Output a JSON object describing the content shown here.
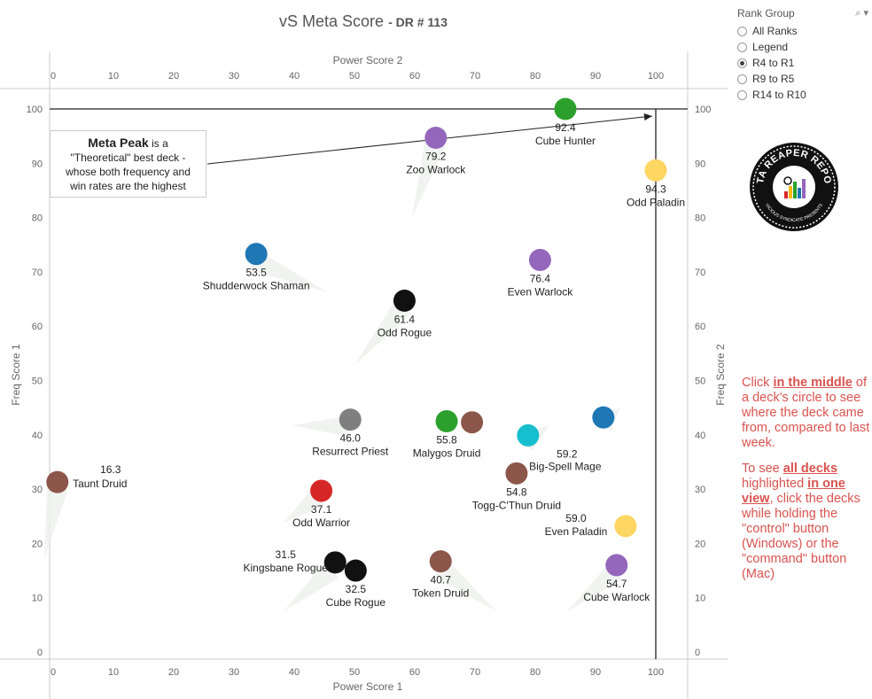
{
  "title": {
    "main": "vS Meta Score",
    "suffix": "- DR # 113"
  },
  "chart_data": {
    "type": "scatter",
    "xlabel": "Power Score 1",
    "x2label": "Power Score 2",
    "ylabel": "Freq Score 1",
    "y2label": "Freq Score 2",
    "xlim": [
      0,
      105
    ],
    "ylim": [
      0,
      105
    ],
    "xticks": [
      0,
      10,
      20,
      30,
      40,
      50,
      60,
      70,
      80,
      90,
      100
    ],
    "yticks": [
      0,
      10,
      20,
      30,
      40,
      50,
      60,
      70,
      80,
      90,
      100
    ],
    "reference_lines": {
      "x": 100,
      "y": 100
    },
    "grid": false,
    "points": [
      {
        "name": "Cube Hunter",
        "score": "92.4",
        "x": 85,
        "y": 100,
        "color": "#2ca02c",
        "label_pos": "below"
      },
      {
        "name": "Zoo Warlock",
        "score": "79.2",
        "x": 63.5,
        "y": 94.7,
        "color": "#9467bd",
        "label_pos": "below"
      },
      {
        "name": "Odd Paladin",
        "score": "94.3",
        "x": 100,
        "y": 88.7,
        "color": "#fdd663",
        "label_pos": "below"
      },
      {
        "name": "Shudderwock Shaman",
        "score": "53.5",
        "x": 33.7,
        "y": 73.3,
        "color": "#1f77b4",
        "label_pos": "below"
      },
      {
        "name": "Even Warlock",
        "score": "76.4",
        "x": 80.8,
        "y": 72.2,
        "color": "#9467bd",
        "label_pos": "below"
      },
      {
        "name": "Odd Rogue",
        "score": "61.4",
        "x": 58.3,
        "y": 64.7,
        "color": "#111111",
        "label_pos": "below"
      },
      {
        "name": "Resurrect Priest",
        "score": "46.0",
        "x": 49.3,
        "y": 42.8,
        "color": "#7f7f7f",
        "label_pos": "below"
      },
      {
        "name": "Malygos Druid",
        "score": "55.8",
        "x": 65.3,
        "y": 42.5,
        "color": "#2ca02c",
        "label_pos": "below"
      },
      {
        "name": "",
        "score": "",
        "x": 69.5,
        "y": 42.3,
        "color": "#8c564b",
        "label_pos": "none"
      },
      {
        "name": "Big-Spell Mage",
        "score": "59.2",
        "x": 78.8,
        "y": 39.9,
        "color": "#17becf",
        "label_pos": "below-right"
      },
      {
        "name": "",
        "score": "",
        "x": 91.3,
        "y": 43.2,
        "color": "#1f77b4",
        "label_pos": "none"
      },
      {
        "name": "Taunt Druid",
        "score": "16.3",
        "x": 0.7,
        "y": 31.3,
        "color": "#8c564b",
        "label_pos": "right"
      },
      {
        "name": "Togg-C'Thun Druid",
        "score": "54.8",
        "x": 76.9,
        "y": 32.9,
        "color": "#8c564b",
        "label_pos": "below"
      },
      {
        "name": "Odd Warrior",
        "score": "37.1",
        "x": 44.5,
        "y": 29.7,
        "color": "#d62728",
        "label_pos": "below"
      },
      {
        "name": "Even Paladin",
        "score": "59.0",
        "x": 95,
        "y": 23.2,
        "color": "#fdd663",
        "label_pos": "left"
      },
      {
        "name": "Kingsbane Rogue",
        "score": "31.5",
        "x": 46.8,
        "y": 16.5,
        "color": "#111111",
        "label_pos": "left"
      },
      {
        "name": "Cube Rogue",
        "score": "32.5",
        "x": 50.2,
        "y": 15,
        "color": "#111111",
        "label_pos": "below"
      },
      {
        "name": "Token Druid",
        "score": "40.7",
        "x": 64.3,
        "y": 16.7,
        "color": "#8c564b",
        "label_pos": "below"
      },
      {
        "name": "Cube Warlock",
        "score": "54.7",
        "x": 93.5,
        "y": 16,
        "color": "#9467bd",
        "label_pos": "below"
      }
    ]
  },
  "annotation": {
    "bold": "Meta Peak",
    "line1_rest": "is a",
    "line2": "\"Theoretical\" best deck -",
    "line3": "whose both frequency and",
    "line4": "win rates are the highest"
  },
  "rank_group": {
    "title": "Rank Group",
    "controls_icon": "search-dropdown-icon",
    "options": [
      {
        "label": "All Ranks",
        "selected": false
      },
      {
        "label": "Legend",
        "selected": false
      },
      {
        "label": "R4 to R1",
        "selected": true
      },
      {
        "label": "R9 to R5",
        "selected": false
      },
      {
        "label": "R14 to R10",
        "selected": false
      }
    ]
  },
  "logo": {
    "top_text": "DATA REAPER REPORT",
    "bottom_text": "VICIOUS SYNDICATE PRESENTS",
    "icon": "bar-chart-logo-icon"
  },
  "instructions": {
    "p1_a": "Click ",
    "p1_b": "in the middle",
    "p1_c": " of a deck's circle to see where the deck came from, compared to last week.",
    "p2_a": "To see ",
    "p2_b": "all decks ",
    "p2_c": " highlighted ",
    "p2_d": "in one view",
    "p2_e": ", click the decks while holding the \"control\" button (Windows) or the \"command\" button (Mac)"
  }
}
